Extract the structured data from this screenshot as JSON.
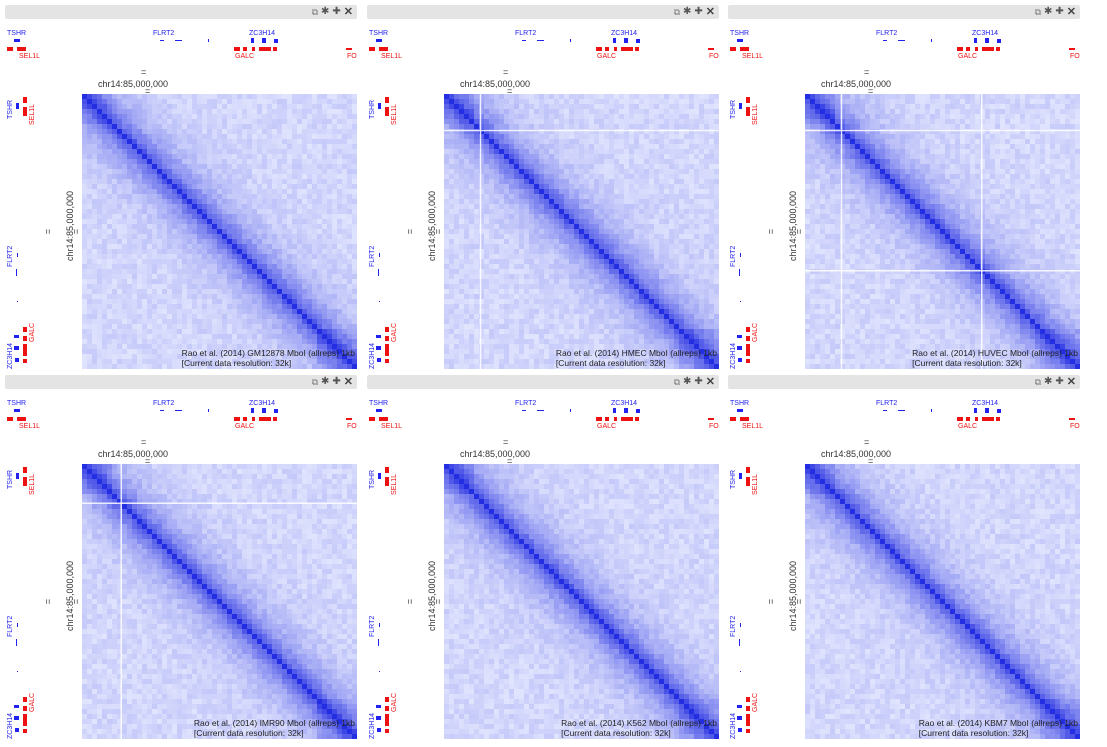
{
  "window": {
    "background": "#ffffff"
  },
  "colors": {
    "heatmap_base": "#8892f4",
    "heatmap_diag": "#2a35e6",
    "gene_blue": "#2222ee",
    "gene_red": "#ee1111"
  },
  "toolbar_icons": [
    "copy-icon",
    "gear-icon",
    "plus-icon",
    "close-icon"
  ],
  "genes": {
    "top_blue": [
      "TSHR",
      "FLRT2",
      "ZC3H14"
    ],
    "top_red": [
      "SEL1L",
      "GALC",
      "FO"
    ],
    "left_blue": [
      "TSHR",
      "FLRT2",
      "ZC3H14"
    ],
    "left_red": [
      "SEL1L",
      "GALC"
    ]
  },
  "coordinate_label": "chr14:85,000,000",
  "resolution_label": "[Current data resolution: 32k]",
  "panels": [
    {
      "dataset": "Rao et al. (2014) GM12878 MboI (allreps) 1kb",
      "crosshair": []
    },
    {
      "dataset": "Rao et al. (2014) HMEC MboI (allreps) 1kb",
      "crosshair": [
        0.13,
        0.13
      ]
    },
    {
      "dataset": "Rao et al. (2014) HUVEC MboI (allreps) 1kb",
      "crosshair": [
        0.13,
        0.13,
        0.64,
        0.64
      ]
    },
    {
      "dataset": "Rao et al. (2014) IMR90 MboI (allreps) 1kb",
      "crosshair": [
        0.14,
        0.14
      ]
    },
    {
      "dataset": "Rao et al. (2014) K562 MboI (allreps) 1kb",
      "crosshair": []
    },
    {
      "dataset": "Rao et al. (2014) KBM7 MboI (allreps) 1kb",
      "crosshair": []
    }
  ]
}
